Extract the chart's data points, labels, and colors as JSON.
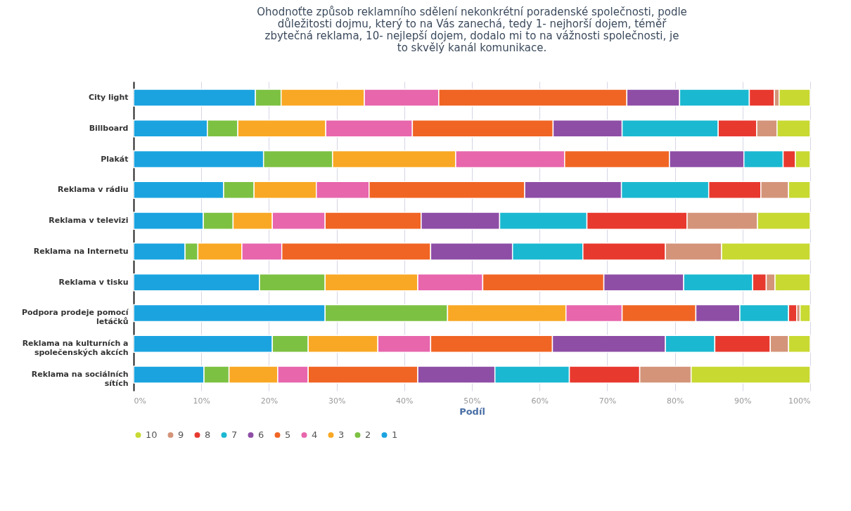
{
  "chart_data": {
    "type": "bar",
    "orientation": "horizontal",
    "stacked": true,
    "title": "Ohodnoťte způsob reklamního sdělení nekonkrétní poradenské společnosti, podle důležitosti dojmu, který to na Vás zanechá, tedy 1- nejhorší dojem, téměř zbytečná reklama, 10- nejlepší dojem, dodalo mi to na vážnosti společnosti, je to skvělý kanál komunikace.",
    "xlabel": "Podíl",
    "categories": [
      "City light",
      "Billboard",
      "Plakát",
      "Reklama v rádiu",
      "Reklama v televizi",
      "Reklama na Internetu",
      "Reklama v tisku",
      "Podpora prodeje pomocí letáčků",
      "Reklama na kulturních a společenských akcích",
      "Reklama na sociálních sítích"
    ],
    "series": [
      {
        "name": "1",
        "color": "#1ba3e0",
        "values": [
          18,
          10.9,
          19.2,
          13.3,
          10.3,
          7.6,
          18.6,
          28.3,
          20.5,
          10.4
        ]
      },
      {
        "name": "2",
        "color": "#7dc142",
        "values": [
          3.8,
          4.5,
          10.2,
          4.5,
          4.4,
          1.9,
          9.7,
          18.1,
          5.3,
          3.7
        ]
      },
      {
        "name": "3",
        "color": "#f9a825",
        "values": [
          12.3,
          13,
          18.2,
          9.2,
          5.8,
          6.5,
          13.7,
          17.5,
          10.3,
          7.2
        ]
      },
      {
        "name": "4",
        "color": "#e766ac",
        "values": [
          11,
          12.8,
          16.1,
          7.8,
          7.8,
          5.9,
          9.6,
          8.3,
          7.8,
          4.5
        ]
      },
      {
        "name": "5",
        "color": "#f06524",
        "values": [
          27.8,
          20.8,
          15.5,
          23,
          14.2,
          22,
          17.9,
          10.9,
          18,
          16.2
        ]
      },
      {
        "name": "6",
        "color": "#8e4ea6",
        "values": [
          7.8,
          10.2,
          11,
          14.3,
          11.6,
          12.1,
          11.8,
          6.5,
          16.7,
          11.4
        ]
      },
      {
        "name": "7",
        "color": "#1bb8d1",
        "values": [
          10.3,
          14.2,
          5.8,
          12.9,
          12.9,
          10.4,
          10.2,
          7.2,
          7.3,
          11
        ]
      },
      {
        "name": "8",
        "color": "#e8392f",
        "values": [
          3.7,
          5.7,
          1.8,
          7.7,
          14.8,
          12.2,
          2,
          1.2,
          8.2,
          10.4
        ]
      },
      {
        "name": "9",
        "color": "#d49479",
        "values": [
          0.7,
          3,
          0,
          4.1,
          10.4,
          8.3,
          1.3,
          0.5,
          2.7,
          7.6
        ]
      },
      {
        "name": "10",
        "color": "#c8d932",
        "values": [
          4.6,
          4.9,
          2.2,
          3.2,
          7.8,
          13.1,
          5.2,
          1.5,
          3.2,
          17.6
        ]
      }
    ],
    "xlim": [
      0,
      100
    ],
    "xticks": [
      {
        "value": 0,
        "label": "0%"
      },
      {
        "value": 10,
        "label": "10%"
      },
      {
        "value": 20,
        "label": "20%"
      },
      {
        "value": 30,
        "label": "30%"
      },
      {
        "value": 40,
        "label": "40%"
      },
      {
        "value": 50,
        "label": "50%"
      },
      {
        "value": 60,
        "label": "60%"
      },
      {
        "value": 70,
        "label": "70%"
      },
      {
        "value": 80,
        "label": "80%"
      },
      {
        "value": 90,
        "label": "90%"
      },
      {
        "value": 100,
        "label": "100%"
      }
    ],
    "grid": "x",
    "legend": "bottom left"
  }
}
